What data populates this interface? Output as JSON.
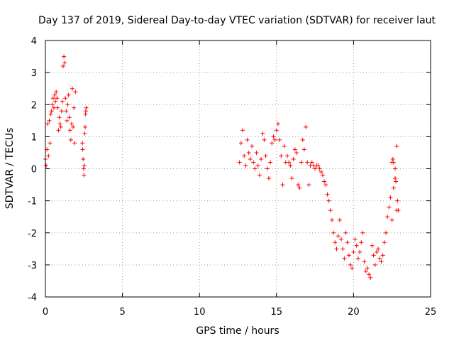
{
  "chart_data": {
    "type": "scatter",
    "title": "Day 137 of 2019, Sidereal Day-to-day VTEC variation (SDTVAR) for receiver laut",
    "xlabel": "GPS time / hours",
    "ylabel": "SDTVAR / TECUs",
    "xlim": [
      0,
      25
    ],
    "ylim": [
      -4,
      4
    ],
    "xticks": [
      0,
      5,
      10,
      15,
      20,
      25
    ],
    "yticks": [
      -4,
      -3,
      -2,
      -1,
      0,
      1,
      2,
      3,
      4
    ],
    "grid": true,
    "marker": "+",
    "color": "#ff0000",
    "segments": [
      {
        "name": "early-cluster-a",
        "points": [
          [
            0.0,
            0.3
          ],
          [
            0.05,
            0.1
          ],
          [
            0.1,
            0.6
          ],
          [
            0.15,
            1.4
          ],
          [
            0.2,
            0.4
          ],
          [
            0.25,
            1.5
          ],
          [
            0.3,
            0.8
          ],
          [
            0.35,
            1.7
          ],
          [
            0.4,
            1.8
          ],
          [
            0.45,
            2.0
          ],
          [
            0.5,
            2.2
          ],
          [
            0.55,
            1.9
          ],
          [
            0.6,
            2.3
          ],
          [
            0.65,
            2.1
          ],
          [
            0.7,
            2.4
          ],
          [
            0.75,
            2.2
          ],
          [
            0.8,
            1.9
          ],
          [
            0.85,
            1.2
          ],
          [
            0.9,
            1.6
          ],
          [
            0.95,
            1.4
          ],
          [
            1.0,
            1.3
          ],
          [
            1.05,
            1.8
          ],
          [
            1.1,
            2.1
          ],
          [
            1.15,
            3.2
          ],
          [
            1.2,
            3.5
          ],
          [
            1.25,
            3.3
          ],
          [
            1.3,
            2.2
          ],
          [
            1.35,
            1.8
          ],
          [
            1.4,
            1.5
          ],
          [
            1.45,
            2.0
          ],
          [
            1.5,
            2.3
          ],
          [
            1.55,
            1.6
          ],
          [
            1.6,
            1.2
          ],
          [
            1.65,
            0.9
          ],
          [
            1.7,
            1.4
          ],
          [
            1.75,
            2.5
          ],
          [
            1.8,
            1.3
          ],
          [
            1.85,
            1.9
          ],
          [
            1.9,
            0.8
          ],
          [
            1.95,
            2.4
          ]
        ]
      },
      {
        "name": "early-cluster-b",
        "points": [
          [
            2.4,
            0.8
          ],
          [
            2.42,
            0.6
          ],
          [
            2.45,
            0.3
          ],
          [
            2.48,
            0.0
          ],
          [
            2.5,
            -0.2
          ],
          [
            2.52,
            0.1
          ],
          [
            2.55,
            1.1
          ],
          [
            2.58,
            1.3
          ],
          [
            2.6,
            1.7
          ],
          [
            2.62,
            1.8
          ],
          [
            2.65,
            1.9
          ]
        ]
      },
      {
        "name": "main-arc",
        "points": [
          [
            12.6,
            0.2
          ],
          [
            12.7,
            0.8
          ],
          [
            12.8,
            1.2
          ],
          [
            12.9,
            0.4
          ],
          [
            13.0,
            0.1
          ],
          [
            13.1,
            0.9
          ],
          [
            13.2,
            0.5
          ],
          [
            13.3,
            0.3
          ],
          [
            13.4,
            0.7
          ],
          [
            13.5,
            0.2
          ],
          [
            13.6,
            0.0
          ],
          [
            13.7,
            0.5
          ],
          [
            13.8,
            0.1
          ],
          [
            13.9,
            -0.2
          ],
          [
            14.0,
            0.3
          ],
          [
            14.1,
            1.1
          ],
          [
            14.2,
            0.9
          ],
          [
            14.3,
            0.4
          ],
          [
            14.4,
            0.0
          ],
          [
            14.5,
            -0.3
          ],
          [
            14.6,
            0.2
          ],
          [
            14.7,
            0.8
          ],
          [
            14.8,
            1.0
          ],
          [
            14.9,
            0.9
          ],
          [
            15.0,
            1.2
          ],
          [
            15.1,
            1.4
          ],
          [
            15.2,
            0.9
          ],
          [
            15.3,
            0.4
          ],
          [
            15.4,
            -0.5
          ],
          [
            15.5,
            0.7
          ],
          [
            15.6,
            0.2
          ],
          [
            15.7,
            0.4
          ],
          [
            15.8,
            0.2
          ],
          [
            15.9,
            0.1
          ],
          [
            16.0,
            -0.3
          ],
          [
            16.1,
            0.3
          ],
          [
            16.2,
            0.6
          ],
          [
            16.3,
            0.5
          ],
          [
            16.4,
            -0.5
          ],
          [
            16.5,
            -0.6
          ],
          [
            16.6,
            0.2
          ],
          [
            16.7,
            0.9
          ],
          [
            16.8,
            0.6
          ],
          [
            16.9,
            1.3
          ],
          [
            17.0,
            0.2
          ],
          [
            17.1,
            -0.5
          ],
          [
            17.2,
            0.1
          ],
          [
            17.3,
            0.2
          ],
          [
            17.4,
            0.1
          ],
          [
            17.5,
            0.0
          ],
          [
            17.6,
            0.1
          ],
          [
            17.7,
            0.1
          ],
          [
            17.8,
            0.0
          ],
          [
            17.9,
            -0.1
          ],
          [
            18.0,
            -0.2
          ],
          [
            18.1,
            -0.4
          ],
          [
            18.2,
            -0.5
          ],
          [
            18.3,
            -0.8
          ],
          [
            18.4,
            -1.0
          ],
          [
            18.5,
            -1.3
          ],
          [
            18.6,
            -1.6
          ],
          [
            18.7,
            -2.0
          ],
          [
            18.8,
            -2.3
          ],
          [
            18.9,
            -2.5
          ],
          [
            19.0,
            -2.1
          ],
          [
            19.1,
            -1.6
          ],
          [
            19.2,
            -2.2
          ],
          [
            19.3,
            -2.5
          ],
          [
            19.4,
            -2.8
          ],
          [
            19.5,
            -2.0
          ],
          [
            19.6,
            -2.3
          ],
          [
            19.7,
            -2.7
          ],
          [
            19.8,
            -3.0
          ],
          [
            19.9,
            -3.1
          ],
          [
            20.0,
            -2.6
          ],
          [
            20.1,
            -2.2
          ],
          [
            20.2,
            -2.4
          ],
          [
            20.3,
            -2.8
          ],
          [
            20.4,
            -2.6
          ],
          [
            20.5,
            -2.3
          ],
          [
            20.6,
            -2.0
          ],
          [
            20.7,
            -2.9
          ],
          [
            20.8,
            -3.2
          ],
          [
            20.9,
            -3.1
          ],
          [
            21.0,
            -3.3
          ],
          [
            21.1,
            -3.4
          ],
          [
            21.2,
            -2.4
          ],
          [
            21.3,
            -2.7
          ],
          [
            21.4,
            -3.0
          ],
          [
            21.5,
            -2.6
          ],
          [
            21.6,
            -2.5
          ],
          [
            21.7,
            -2.8
          ],
          [
            21.8,
            -2.9
          ],
          [
            21.9,
            -2.7
          ],
          [
            22.0,
            -2.3
          ],
          [
            22.1,
            -2.0
          ],
          [
            22.2,
            -1.5
          ],
          [
            22.3,
            -1.2
          ],
          [
            22.4,
            -0.9
          ],
          [
            22.5,
            -1.6
          ],
          [
            22.6,
            -0.6
          ],
          [
            22.7,
            -0.3
          ],
          [
            22.8,
            -1.3
          ]
        ]
      },
      {
        "name": "late-branch",
        "points": [
          [
            22.5,
            0.2
          ],
          [
            22.55,
            0.3
          ],
          [
            22.6,
            0.2
          ],
          [
            22.7,
            0.0
          ],
          [
            22.75,
            -0.4
          ],
          [
            22.8,
            0.7
          ],
          [
            22.85,
            -1.0
          ],
          [
            22.9,
            -1.3
          ]
        ]
      }
    ]
  }
}
